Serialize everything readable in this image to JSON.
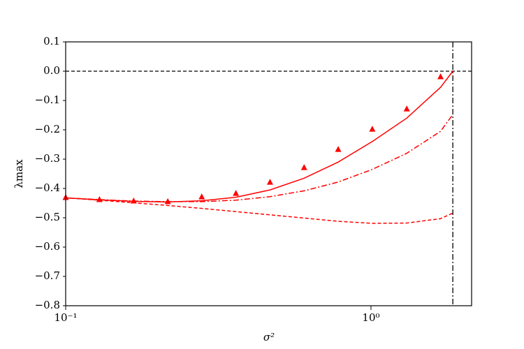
{
  "chart_data": {
    "type": "line",
    "xlabel": "σ²",
    "ylabel": "λmax",
    "xscale": "log",
    "xlim": [
      0.1,
      2.136
    ],
    "ylim": [
      -0.8,
      0.1
    ],
    "xticks": [
      {
        "value": 0.1,
        "label": "10⁻¹"
      },
      {
        "value": 1,
        "label": "10⁰"
      }
    ],
    "yticks": [
      0.1,
      {
        "value": 0,
        "label": "0.0"
      },
      {
        "value": -0.1,
        "label": "−0.1"
      },
      {
        "value": -0.2,
        "label": "−0.2"
      },
      {
        "value": -0.3,
        "label": "−0.3"
      },
      {
        "value": -0.4,
        "label": "−0.4"
      },
      {
        "value": -0.5,
        "label": "−0.5"
      },
      {
        "value": -0.6,
        "label": "−0.6"
      },
      {
        "value": -0.7,
        "label": "−0.7"
      },
      {
        "value": -0.8,
        "label": "−0.8"
      }
    ],
    "hline": {
      "y": 0,
      "color": "#000000",
      "linestyle": "dashed"
    },
    "vline": {
      "x": 1.854,
      "color": "#000000",
      "linestyle": "dashdot"
    },
    "series": [
      {
        "color": "#ff0000",
        "linestyle": "solid",
        "x": [
          0.1,
          0.129,
          0.167,
          0.216,
          0.279,
          0.361,
          0.467,
          0.604,
          0.781,
          1.01,
          1.31,
          1.69,
          1.854
        ],
        "values": [
          -0.432,
          -0.439,
          -0.444,
          -0.446,
          -0.442,
          -0.43,
          -0.405,
          -0.365,
          -0.31,
          -0.24,
          -0.16,
          -0.055,
          0.0
        ]
      },
      {
        "color": "#ff0000",
        "linestyle": "dashdot",
        "x": [
          0.1,
          0.129,
          0.167,
          0.216,
          0.279,
          0.361,
          0.467,
          0.604,
          0.781,
          1.01,
          1.31,
          1.69,
          1.854
        ],
        "values": [
          -0.432,
          -0.438,
          -0.443,
          -0.445,
          -0.445,
          -0.44,
          -0.428,
          -0.408,
          -0.378,
          -0.335,
          -0.28,
          -0.205,
          -0.148
        ]
      },
      {
        "color": "#ff0000",
        "linestyle": "dashed",
        "x": [
          0.1,
          0.129,
          0.167,
          0.216,
          0.279,
          0.361,
          0.467,
          0.604,
          0.781,
          1.01,
          1.31,
          1.69,
          1.854
        ],
        "values": [
          -0.432,
          -0.44,
          -0.449,
          -0.458,
          -0.468,
          -0.479,
          -0.49,
          -0.501,
          -0.512,
          -0.519,
          -0.518,
          -0.503,
          -0.484
        ]
      },
      {
        "color": "#ff0000",
        "linestyle": "none",
        "marker": "triangle",
        "x": [
          0.1,
          0.129,
          0.167,
          0.216,
          0.279,
          0.361,
          0.467,
          0.604,
          0.781,
          1.01,
          1.31,
          1.69
        ],
        "values": [
          -0.431,
          -0.438,
          -0.443,
          -0.445,
          -0.429,
          -0.417,
          -0.379,
          -0.329,
          -0.267,
          -0.198,
          -0.129,
          -0.019
        ]
      }
    ]
  }
}
